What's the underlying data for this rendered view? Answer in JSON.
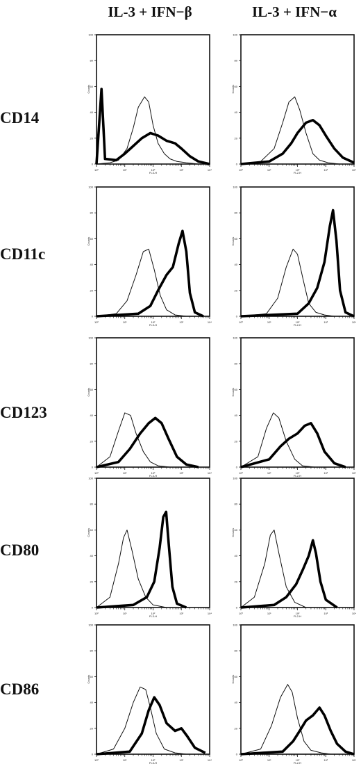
{
  "columns": [
    "IL-3 + IFN−β",
    "IL-3 + IFN−α"
  ],
  "rows": [
    "CD14",
    "CD11c",
    "CD123",
    "CD80",
    "CD86"
  ],
  "axis": {
    "xlabel_left": "FL3-H",
    "xlabel_right": "FL2-H",
    "ylabel": "Counts",
    "yticks": [
      0,
      20,
      40,
      60,
      80,
      100
    ],
    "xticks": [
      "10⁰",
      "10¹",
      "10²",
      "10³",
      "10⁴"
    ]
  },
  "chart_data": {
    "type": "line",
    "x_scale": "log",
    "xlim": [
      1,
      10000
    ],
    "ylim": [
      0,
      100
    ],
    "panels": [
      {
        "row": "CD14",
        "column": "IL-3 + IFN−β",
        "control": [
          [
            1,
            0
          ],
          [
            3,
            1
          ],
          [
            6,
            3
          ],
          [
            12,
            12
          ],
          [
            20,
            28
          ],
          [
            30,
            44
          ],
          [
            50,
            52
          ],
          [
            70,
            48
          ],
          [
            100,
            30
          ],
          [
            150,
            16
          ],
          [
            250,
            8
          ],
          [
            400,
            4
          ],
          [
            700,
            2
          ],
          [
            1500,
            1
          ],
          [
            4000,
            0
          ]
        ],
        "stained": [
          [
            1,
            0
          ],
          [
            1.5,
            58
          ],
          [
            2,
            4
          ],
          [
            5,
            3
          ],
          [
            10,
            8
          ],
          [
            20,
            14
          ],
          [
            40,
            20
          ],
          [
            80,
            24
          ],
          [
            150,
            22
          ],
          [
            300,
            18
          ],
          [
            600,
            16
          ],
          [
            1000,
            12
          ],
          [
            2000,
            6
          ],
          [
            4000,
            2
          ],
          [
            10000,
            0
          ]
        ]
      },
      {
        "row": "CD14",
        "column": "IL-3 + IFN−α",
        "control": [
          [
            1,
            0
          ],
          [
            5,
            2
          ],
          [
            15,
            12
          ],
          [
            30,
            32
          ],
          [
            50,
            48
          ],
          [
            80,
            52
          ],
          [
            120,
            42
          ],
          [
            200,
            24
          ],
          [
            350,
            8
          ],
          [
            600,
            3
          ],
          [
            1200,
            1
          ],
          [
            3000,
            0
          ]
        ],
        "stained": [
          [
            1,
            0
          ],
          [
            10,
            2
          ],
          [
            30,
            8
          ],
          [
            60,
            16
          ],
          [
            100,
            24
          ],
          [
            200,
            32
          ],
          [
            350,
            34
          ],
          [
            600,
            30
          ],
          [
            1000,
            22
          ],
          [
            2000,
            12
          ],
          [
            4000,
            5
          ],
          [
            10000,
            1
          ]
        ]
      },
      {
        "row": "CD11c",
        "column": "IL-3 + IFN−β",
        "control": [
          [
            1,
            0
          ],
          [
            5,
            2
          ],
          [
            12,
            12
          ],
          [
            25,
            32
          ],
          [
            45,
            50
          ],
          [
            70,
            52
          ],
          [
            110,
            36
          ],
          [
            180,
            16
          ],
          [
            300,
            5
          ],
          [
            600,
            1
          ],
          [
            1500,
            0
          ]
        ],
        "stained": [
          [
            1,
            0
          ],
          [
            30,
            2
          ],
          [
            80,
            8
          ],
          [
            150,
            20
          ],
          [
            300,
            32
          ],
          [
            500,
            38
          ],
          [
            800,
            56
          ],
          [
            1100,
            66
          ],
          [
            1500,
            50
          ],
          [
            2000,
            18
          ],
          [
            3000,
            3
          ],
          [
            6000,
            0
          ]
        ]
      },
      {
        "row": "CD11c",
        "column": "IL-3 + IFN−α",
        "control": [
          [
            1,
            0
          ],
          [
            8,
            2
          ],
          [
            20,
            14
          ],
          [
            40,
            38
          ],
          [
            70,
            52
          ],
          [
            100,
            48
          ],
          [
            160,
            28
          ],
          [
            250,
            10
          ],
          [
            450,
            3
          ],
          [
            900,
            1
          ],
          [
            2000,
            0
          ]
        ],
        "stained": [
          [
            1,
            0
          ],
          [
            100,
            2
          ],
          [
            250,
            10
          ],
          [
            500,
            22
          ],
          [
            900,
            42
          ],
          [
            1400,
            70
          ],
          [
            1800,
            82
          ],
          [
            2400,
            58
          ],
          [
            3200,
            20
          ],
          [
            5000,
            3
          ],
          [
            10000,
            0
          ]
        ]
      },
      {
        "row": "CD123",
        "column": "IL-3 + IFN−β",
        "control": [
          [
            1,
            0
          ],
          [
            3,
            8
          ],
          [
            6,
            28
          ],
          [
            10,
            42
          ],
          [
            16,
            40
          ],
          [
            25,
            26
          ],
          [
            45,
            12
          ],
          [
            80,
            4
          ],
          [
            150,
            1
          ],
          [
            400,
            0
          ]
        ],
        "stained": [
          [
            1,
            0
          ],
          [
            6,
            4
          ],
          [
            15,
            14
          ],
          [
            35,
            26
          ],
          [
            70,
            34
          ],
          [
            120,
            38
          ],
          [
            200,
            34
          ],
          [
            350,
            22
          ],
          [
            700,
            8
          ],
          [
            1500,
            2
          ],
          [
            4000,
            0
          ]
        ]
      },
      {
        "row": "CD123",
        "column": "IL-3 + IFN−α",
        "control": [
          [
            1,
            0
          ],
          [
            4,
            8
          ],
          [
            8,
            30
          ],
          [
            14,
            42
          ],
          [
            22,
            38
          ],
          [
            40,
            20
          ],
          [
            80,
            6
          ],
          [
            150,
            1
          ],
          [
            400,
            0
          ]
        ],
        "stained": [
          [
            1,
            0
          ],
          [
            10,
            6
          ],
          [
            25,
            16
          ],
          [
            50,
            22
          ],
          [
            100,
            26
          ],
          [
            180,
            32
          ],
          [
            300,
            34
          ],
          [
            500,
            26
          ],
          [
            900,
            12
          ],
          [
            2000,
            3
          ],
          [
            5000,
            0
          ]
        ]
      },
      {
        "row": "CD80",
        "column": "IL-3 + IFN−β",
        "control": [
          [
            1,
            0
          ],
          [
            3,
            8
          ],
          [
            6,
            34
          ],
          [
            9,
            54
          ],
          [
            12,
            60
          ],
          [
            18,
            44
          ],
          [
            30,
            22
          ],
          [
            55,
            8
          ],
          [
            100,
            2
          ],
          [
            300,
            0
          ]
        ],
        "stained": [
          [
            1,
            0
          ],
          [
            20,
            2
          ],
          [
            60,
            8
          ],
          [
            110,
            20
          ],
          [
            170,
            46
          ],
          [
            230,
            70
          ],
          [
            290,
            74
          ],
          [
            360,
            48
          ],
          [
            480,
            16
          ],
          [
            700,
            3
          ],
          [
            1500,
            0
          ]
        ]
      },
      {
        "row": "CD80",
        "column": "IL-3 + IFN−α",
        "control": [
          [
            1,
            0
          ],
          [
            3,
            8
          ],
          [
            7,
            34
          ],
          [
            11,
            56
          ],
          [
            15,
            60
          ],
          [
            22,
            42
          ],
          [
            40,
            16
          ],
          [
            80,
            4
          ],
          [
            200,
            0
          ]
        ],
        "stained": [
          [
            1,
            0
          ],
          [
            15,
            2
          ],
          [
            40,
            8
          ],
          [
            90,
            18
          ],
          [
            160,
            30
          ],
          [
            250,
            40
          ],
          [
            350,
            52
          ],
          [
            450,
            42
          ],
          [
            650,
            20
          ],
          [
            1000,
            6
          ],
          [
            2500,
            0
          ]
        ]
      },
      {
        "row": "CD86",
        "column": "IL-3 + IFN−β",
        "control": [
          [
            1,
            0
          ],
          [
            4,
            4
          ],
          [
            10,
            20
          ],
          [
            20,
            40
          ],
          [
            35,
            52
          ],
          [
            55,
            50
          ],
          [
            80,
            36
          ],
          [
            130,
            16
          ],
          [
            250,
            4
          ],
          [
            600,
            1
          ],
          [
            1500,
            0
          ]
        ],
        "stained": [
          [
            1,
            0
          ],
          [
            15,
            2
          ],
          [
            40,
            16
          ],
          [
            70,
            34
          ],
          [
            110,
            44
          ],
          [
            170,
            38
          ],
          [
            300,
            24
          ],
          [
            600,
            18
          ],
          [
            1000,
            20
          ],
          [
            1600,
            14
          ],
          [
            3000,
            5
          ],
          [
            7000,
            1
          ]
        ]
      },
      {
        "row": "CD86",
        "column": "IL-3 + IFN−α",
        "control": [
          [
            1,
            0
          ],
          [
            5,
            4
          ],
          [
            12,
            22
          ],
          [
            25,
            44
          ],
          [
            45,
            54
          ],
          [
            65,
            48
          ],
          [
            100,
            28
          ],
          [
            170,
            10
          ],
          [
            300,
            3
          ],
          [
            700,
            1
          ],
          [
            1500,
            0
          ]
        ],
        "stained": [
          [
            1,
            0
          ],
          [
            30,
            2
          ],
          [
            70,
            10
          ],
          [
            120,
            18
          ],
          [
            200,
            26
          ],
          [
            350,
            30
          ],
          [
            600,
            36
          ],
          [
            900,
            30
          ],
          [
            1500,
            18
          ],
          [
            2500,
            8
          ],
          [
            5000,
            2
          ],
          [
            10000,
            0
          ]
        ]
      }
    ]
  }
}
